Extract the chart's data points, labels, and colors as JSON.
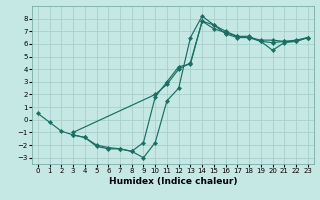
{
  "xlabel": "Humidex (Indice chaleur)",
  "bg_color": "#c5e8e5",
  "grid_color": "#a8d0cc",
  "line_color": "#1a6e62",
  "xlim": [
    -0.5,
    23.5
  ],
  "ylim": [
    -3.5,
    9.0
  ],
  "xticks": [
    0,
    1,
    2,
    3,
    4,
    5,
    6,
    7,
    8,
    9,
    10,
    11,
    12,
    13,
    14,
    15,
    16,
    17,
    18,
    19,
    20,
    21,
    22,
    23
  ],
  "yticks": [
    -3,
    -2,
    -1,
    0,
    1,
    2,
    3,
    4,
    5,
    6,
    7,
    8
  ],
  "lines": [
    {
      "x": [
        0,
        1,
        2,
        3,
        4,
        5,
        6,
        7,
        8,
        9,
        10,
        11,
        12,
        13,
        14,
        15,
        16,
        17,
        18,
        19,
        20,
        21,
        22,
        23
      ],
      "y": [
        0.5,
        -0.2,
        -0.9,
        -1.2,
        -1.4,
        -2.1,
        -2.3,
        -2.3,
        -2.5,
        -3.0,
        -1.8,
        1.5,
        2.5,
        6.5,
        8.2,
        7.5,
        7.0,
        6.6,
        6.5,
        6.3,
        6.3,
        6.2,
        6.3,
        6.5
      ]
    },
    {
      "x": [
        3,
        4,
        5,
        6,
        7,
        8,
        9,
        10,
        11,
        12,
        13,
        14,
        15,
        16,
        17,
        18,
        19,
        20,
        21,
        22,
        23
      ],
      "y": [
        -1.2,
        -1.4,
        -2.0,
        -2.2,
        -2.3,
        -2.5,
        -1.8,
        1.8,
        3.0,
        4.2,
        4.4,
        7.8,
        7.5,
        6.8,
        6.5,
        6.5,
        6.2,
        6.1,
        6.2,
        6.2,
        6.5
      ]
    },
    {
      "x": [
        3,
        10,
        11,
        12,
        13,
        14,
        15,
        16,
        17,
        18,
        19,
        20,
        21,
        22,
        23
      ],
      "y": [
        -1.0,
        2.0,
        2.8,
        4.0,
        4.5,
        7.8,
        7.2,
        6.9,
        6.6,
        6.6,
        6.2,
        5.5,
        6.1,
        6.2,
        6.5
      ]
    }
  ]
}
